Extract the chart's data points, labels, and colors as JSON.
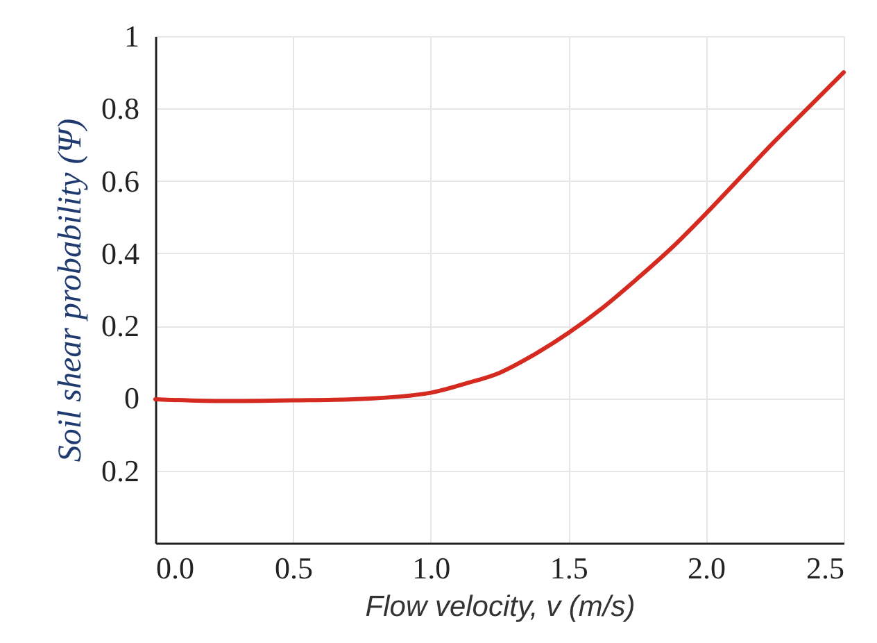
{
  "chart_data": {
    "type": "line",
    "xlabel": "Flow velocity, v (m/s)",
    "ylabel": "Soil shear probability (Ψ)",
    "x": [
      0,
      0.25,
      0.5,
      0.75,
      1.0,
      1.125,
      1.25,
      1.375,
      1.5,
      1.625,
      1.75,
      1.875,
      2.0,
      2.125,
      2.25,
      2.375,
      2.5
    ],
    "series": [
      {
        "color": "#d42a1f",
        "values": [
          -0.003,
          -0.008,
          -0.006,
          -0.002,
          0.015,
          0.04,
          0.07,
          0.12,
          0.18,
          0.25,
          0.33,
          0.415,
          0.51,
          0.61,
          0.71,
          0.805,
          0.9
        ]
      }
    ],
    "xlim": [
      0,
      2.5
    ],
    "xticks": [
      {
        "value": 0,
        "label": "0.0"
      },
      0.5,
      {
        "value": 1,
        "label": "1.0"
      },
      1.5,
      {
        "value": 2,
        "label": "2.0"
      },
      2.5
    ],
    "ylim": [
      -0.4,
      1
    ],
    "yticks": [
      {
        "value": -0.2,
        "label": "0.2"
      },
      0,
      0.2,
      0.4,
      0.6,
      0.8,
      1
    ],
    "grid": true,
    "marker": "none",
    "line_style": "solid"
  }
}
